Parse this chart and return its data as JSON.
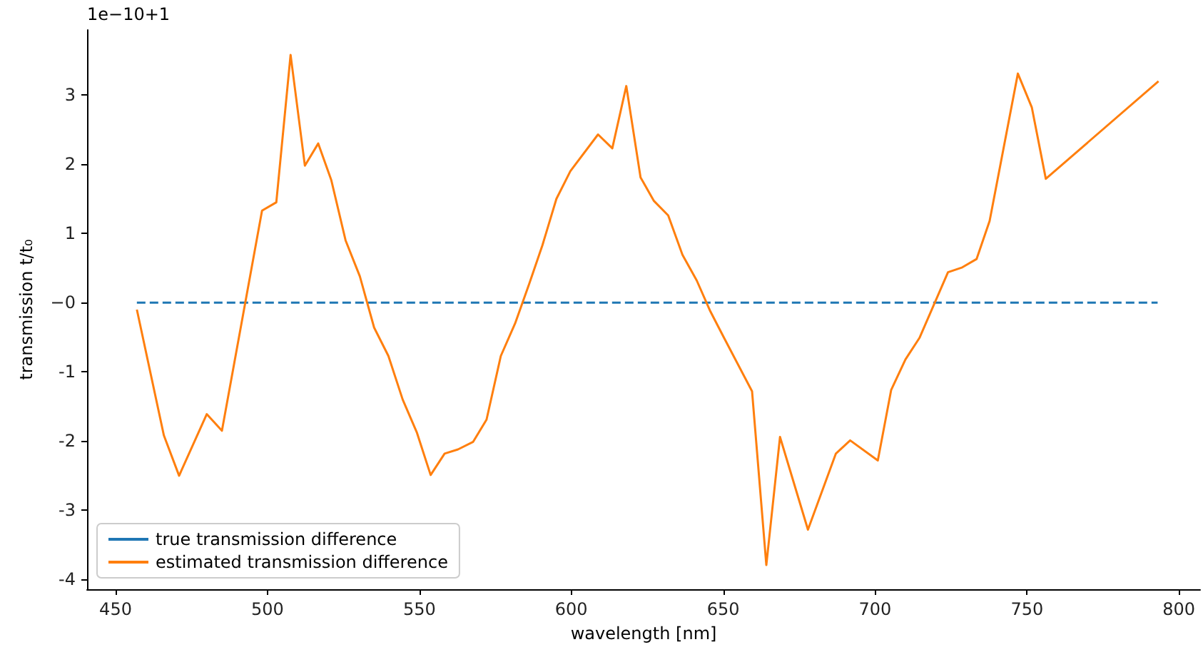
{
  "chart_data": {
    "type": "line",
    "xlabel": "wavelength [nm]",
    "ylabel": "transmission t/t₀",
    "annotations": [
      "1e−10+1"
    ],
    "xlim": [
      440.6,
      807
    ],
    "xticks": [
      450,
      500,
      550,
      600,
      650,
      700,
      750,
      800
    ],
    "ylim": [
      -4.14,
      3.94
    ],
    "yticks": [
      -4,
      -3,
      -2,
      -1,
      {
        "value": 0,
        "label": "−0"
      },
      1,
      2,
      3
    ],
    "grid": false,
    "legend": "bottom left",
    "marker": "none",
    "series": [
      {
        "name": "true transmission difference",
        "color": "#1f77b4",
        "line_style": "dashed",
        "x": [
          457,
          793
        ],
        "values": [
          0,
          0
        ]
      },
      {
        "name": "estimated transmission difference",
        "color": "#ff7f0e",
        "line_style": "solid",
        "x": [
          457,
          465.9,
          470.9,
          480,
          485,
          498.2,
          502.9,
          507.6,
          512.3,
          516.7,
          521,
          525.7,
          530.4,
          535.1,
          539.8,
          544.5,
          549.2,
          553.7,
          558.3,
          562.7,
          567.7,
          572.1,
          576.8,
          581.5,
          586.2,
          590.5,
          595.1,
          599.7,
          608.8,
          613.5,
          618.1,
          622.8,
          627.2,
          631.9,
          636.6,
          641.3,
          645.6,
          650.3,
          659.5,
          664.2,
          668.7,
          677.9,
          687.1,
          691.8,
          700.9,
          705.3,
          710,
          714.6,
          724,
          728.7,
          733.4,
          737.7,
          747,
          751.6,
          756.2,
          793.3
        ],
        "values": [
          -0.1,
          -1.92,
          -2.5,
          -1.61,
          -1.85,
          1.33,
          1.45,
          3.58,
          1.98,
          2.3,
          1.77,
          0.9,
          0.38,
          -0.36,
          -0.77,
          -1.4,
          -1.88,
          -2.49,
          -2.18,
          -2.12,
          -2.01,
          -1.69,
          -0.77,
          -0.3,
          0.28,
          0.83,
          1.5,
          1.9,
          2.43,
          2.23,
          3.13,
          1.81,
          1.47,
          1.26,
          0.69,
          0.32,
          -0.11,
          -0.51,
          -1.28,
          -3.79,
          -1.94,
          -3.28,
          -2.18,
          -1.99,
          -2.28,
          -1.26,
          -0.82,
          -0.51,
          0.44,
          0.51,
          0.63,
          1.18,
          3.31,
          2.82,
          1.79,
          3.2
        ]
      }
    ]
  }
}
